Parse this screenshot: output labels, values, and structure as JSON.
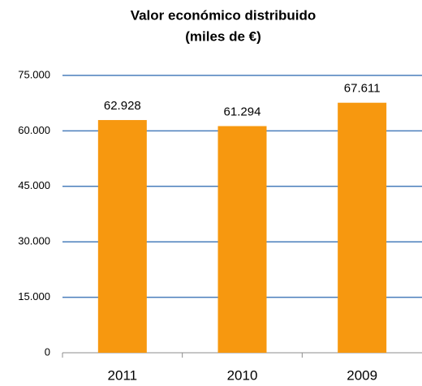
{
  "chart_data": {
    "type": "bar",
    "title": [
      "Valor económico distribuido",
      "(miles de €)"
    ],
    "categories": [
      "2011",
      "2010",
      "2009"
    ],
    "values": [
      62928,
      61294,
      67611
    ],
    "value_labels": [
      "62.928",
      "61.294",
      "67.611"
    ],
    "color": "#f7980f",
    "ylim": [
      0,
      75000
    ],
    "yticks": [
      0,
      {
        "value": 15000,
        "label": "15.000"
      },
      {
        "value": 30000,
        "label": "30.000"
      },
      {
        "value": 45000,
        "label": "45.000"
      },
      {
        "value": 60000,
        "label": "60.000"
      },
      {
        "value": 75000,
        "label": "75.000"
      }
    ],
    "grid": true
  }
}
